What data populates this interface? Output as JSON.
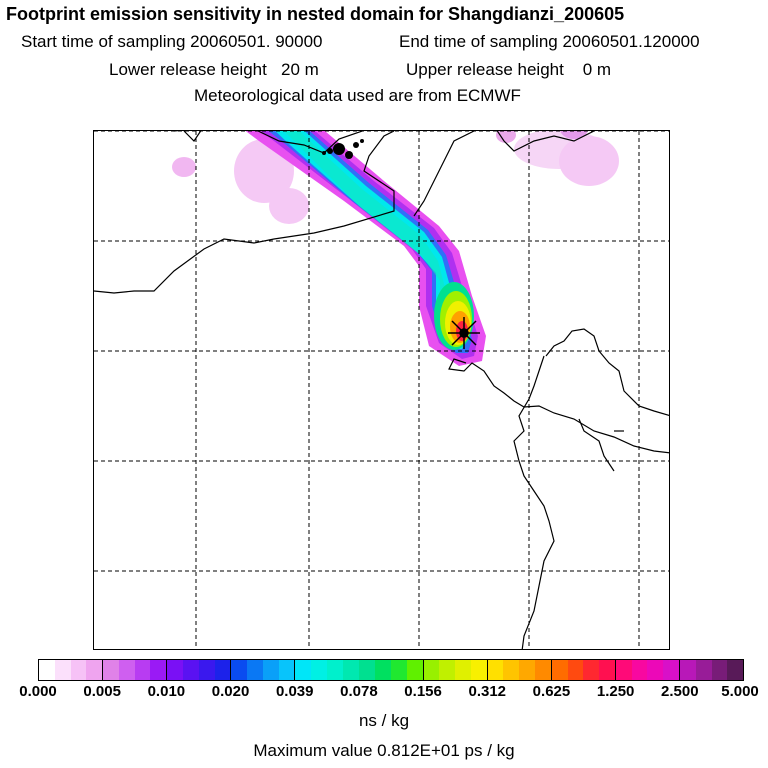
{
  "header": {
    "title": "Footprint emission sensitivity in nested domain for Shangdianzi_200605",
    "start_label": "Start time of sampling 20060501. 90000",
    "end_label": "End time of sampling 20060501.120000",
    "lower_label": "Lower release height   20 m",
    "upper_label": "Upper release height    0 m",
    "met_label": "Meteorological data used are from ECMWF"
  },
  "colorbar": {
    "ticks": [
      "0.000",
      "0.005",
      "0.010",
      "0.020",
      "0.039",
      "0.078",
      "0.156",
      "0.312",
      "0.625",
      "1.250",
      "2.500",
      "5.000"
    ],
    "segment_colors": [
      [
        "#ffffff",
        "#fbe0fb",
        "#f6c2f6",
        "#efa4ef"
      ],
      [
        "#e082e8",
        "#cf5ff0",
        "#b83cf2",
        "#9a1af5"
      ],
      [
        "#7a10f5",
        "#5a12f2",
        "#3a18ee",
        "#1c22ea"
      ],
      [
        "#0a4cf0",
        "#0a78f4",
        "#0aa0f8",
        "#08c4fb"
      ],
      [
        "#00e6f8",
        "#00f0e4",
        "#00f0cc",
        "#00e8b0"
      ],
      [
        "#00e090",
        "#00e060",
        "#20e830",
        "#60f000"
      ],
      [
        "#98f000",
        "#c0f000",
        "#e0f000",
        "#f8f000"
      ],
      [
        "#ffe000",
        "#ffc400",
        "#ffa800",
        "#ff8a00"
      ],
      [
        "#ff6c00",
        "#ff4a10",
        "#ff2830",
        "#ff1050"
      ],
      [
        "#ff0a78",
        "#f808a0",
        "#ec08b8",
        "#d810c8"
      ],
      [
        "#b818b8",
        "#981c98",
        "#781c78",
        "#581a58"
      ]
    ],
    "units": "ns / kg",
    "max_label": "Maximum value  0.812E+01 ps / kg"
  },
  "map": {
    "plume_colors": {
      "halo": "#f4c4f4",
      "magenta": "#e040f0",
      "violet": "#a020f0",
      "blue": "#2060f8",
      "cyan": "#00ecec",
      "green": "#00e090",
      "yellow": "#f0f000",
      "orange": "#ffa000",
      "red": "#ff2040"
    },
    "receptor_icon": "receptor-star-icon"
  }
}
